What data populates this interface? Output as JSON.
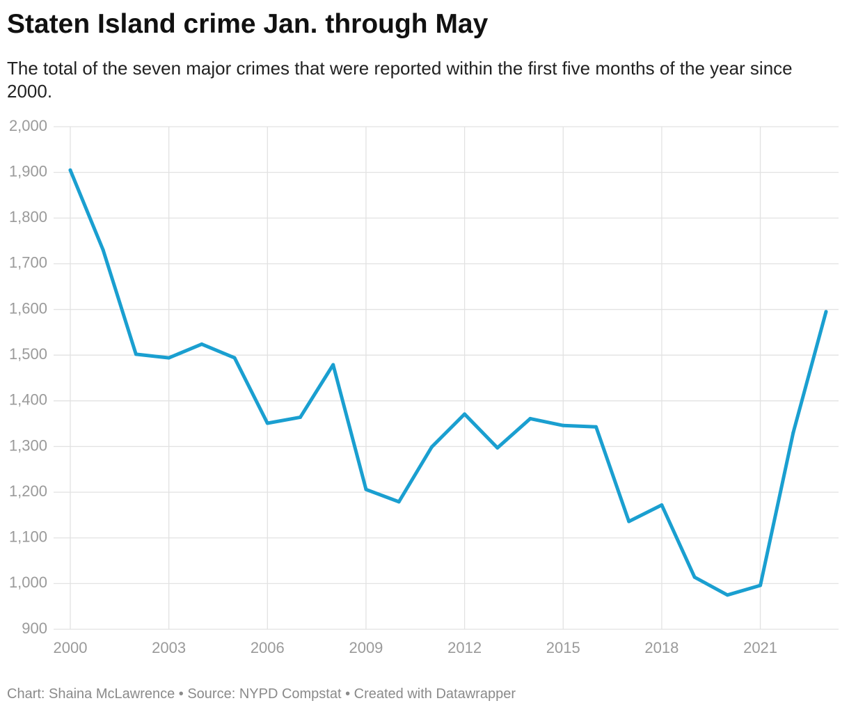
{
  "header": {
    "title": "Staten Island crime Jan. through May",
    "subtitle": "The total of the seven major crimes that were reported within the first five months of the year since 2000."
  },
  "footer": {
    "credit": "Chart: Shaina McLawrence • Source: NYPD Compstat • Created with Datawrapper"
  },
  "colors": {
    "line": "#1a9fd0",
    "grid": "#e2e2e2",
    "tick_text": "#9a9a9a"
  },
  "chart_data": {
    "type": "line",
    "title": "Staten Island crime Jan. through May",
    "subtitle": "The total of the seven major crimes that were reported within the first five months of the year since 2000.",
    "xlabel": "",
    "ylabel": "",
    "x": [
      2000,
      2001,
      2002,
      2003,
      2004,
      2005,
      2006,
      2007,
      2008,
      2009,
      2010,
      2011,
      2012,
      2013,
      2014,
      2015,
      2016,
      2017,
      2018,
      2019,
      2020,
      2021,
      2022,
      2023
    ],
    "series": [
      {
        "values": [
          1905,
          1730,
          1502,
          1494,
          1524,
          1494,
          1351,
          1364,
          1479,
          1206,
          1179,
          1299,
          1371,
          1297,
          1361,
          1346,
          1343,
          1136,
          1172,
          1014,
          975,
          996,
          1330,
          1595
        ]
      }
    ],
    "xlim": [
      2000,
      2023
    ],
    "ylim": [
      900,
      2000
    ],
    "x_ticks": [
      2000,
      2003,
      2006,
      2009,
      2012,
      2015,
      2018,
      2021
    ],
    "x_tick_labels": [
      "2000",
      "2003",
      "2006",
      "2009",
      "2012",
      "2015",
      "2018",
      "2021"
    ],
    "y_ticks": [
      900,
      1000,
      1100,
      1200,
      1300,
      1400,
      1500,
      1600,
      1700,
      1800,
      1900,
      2000
    ],
    "y_tick_labels": [
      "900",
      "1,000",
      "1,100",
      "1,200",
      "1,300",
      "1,400",
      "1,500",
      "1,600",
      "1,700",
      "1,800",
      "1,900",
      "2,000"
    ],
    "grid": true,
    "legend": "none"
  }
}
